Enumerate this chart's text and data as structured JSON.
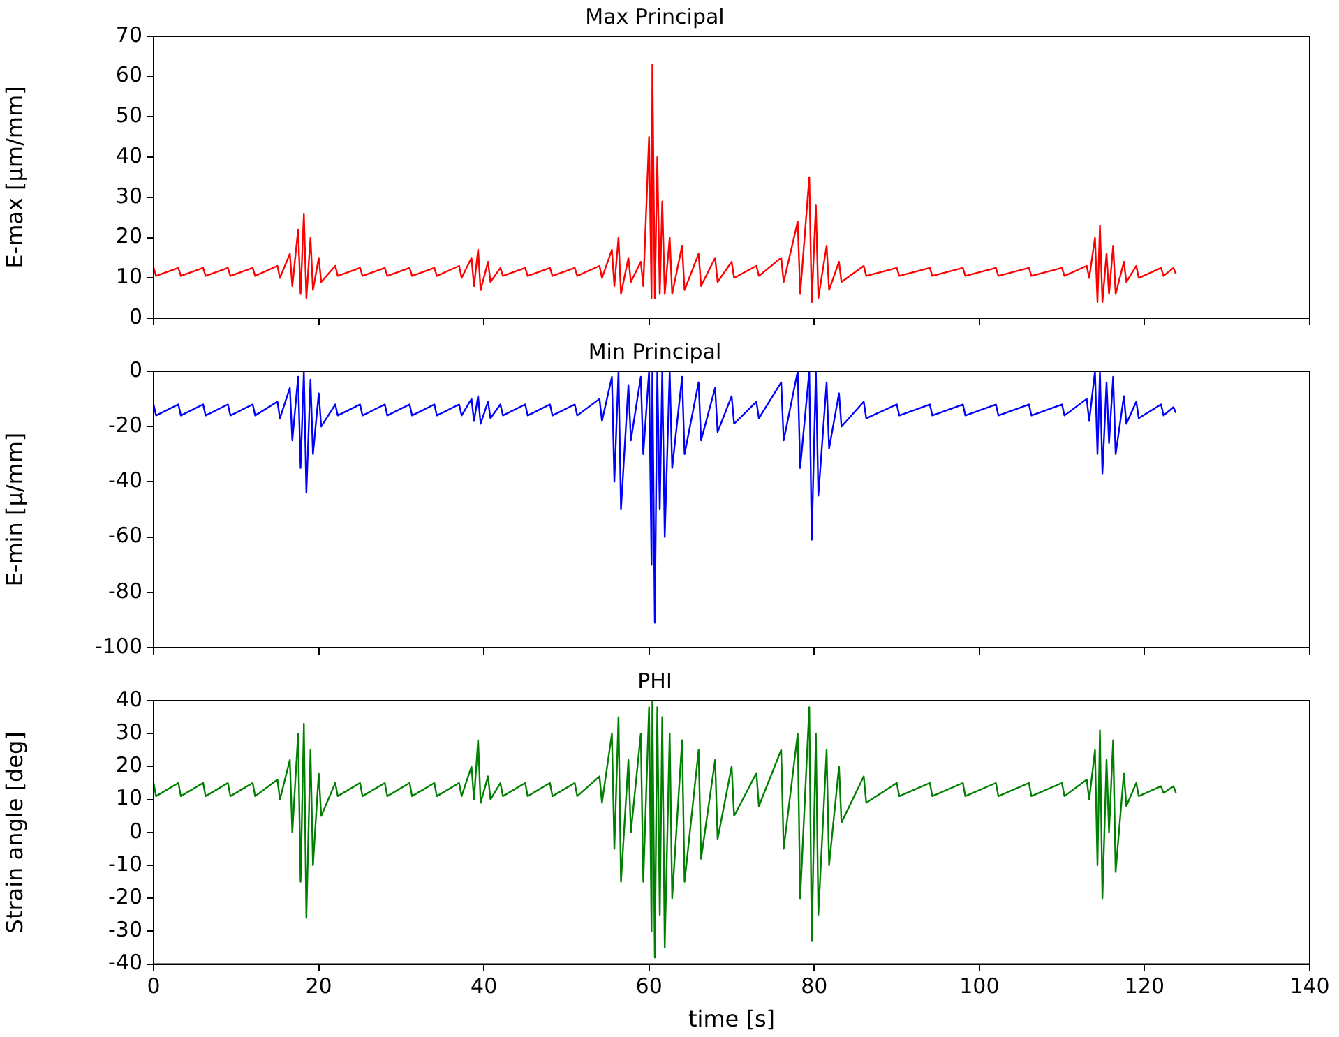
{
  "chart_data": [
    {
      "type": "line",
      "title": "Max Principal",
      "ylabel": "E-max [µm/mm]",
      "xlim": [
        0,
        140
      ],
      "xticks": [
        0,
        20,
        40,
        60,
        80,
        100,
        120,
        140
      ],
      "ylim": [
        0,
        70
      ],
      "yticks": [
        0,
        10,
        20,
        30,
        40,
        50,
        60,
        70
      ],
      "tick_labels": "y",
      "grid": false,
      "legend": false,
      "marker": "none",
      "line_style": "solid",
      "series": [
        {
          "color": "#ff0000",
          "x": [
            0,
            0.3,
            3,
            3.3,
            6,
            6.3,
            9,
            9.3,
            12,
            12.3,
            15,
            15.3,
            16.5,
            16.8,
            17.5,
            17.8,
            18.2,
            18.5,
            19,
            19.3,
            20,
            20.3,
            22,
            22.3,
            25,
            25.3,
            28,
            28.3,
            31,
            31.3,
            34,
            34.3,
            37,
            37.3,
            38.5,
            38.8,
            39.3,
            39.6,
            40.5,
            40.8,
            42,
            42.3,
            45,
            45.3,
            48,
            48.3,
            51,
            51.3,
            54,
            54.3,
            55.5,
            55.8,
            56.3,
            56.6,
            57.5,
            57.8,
            59,
            59.3,
            60,
            60.3,
            60.4,
            60.7,
            61,
            61.3,
            61.6,
            61.9,
            62.5,
            62.8,
            64,
            64.3,
            66,
            66.3,
            68,
            68.3,
            70,
            70.3,
            73,
            73.3,
            76,
            76.3,
            78,
            78.3,
            79.4,
            79.7,
            80.2,
            80.5,
            81.5,
            81.8,
            83,
            83.3,
            86,
            86.3,
            90,
            90.3,
            94,
            94.3,
            98,
            98.3,
            102,
            102.3,
            106,
            106.3,
            110,
            110.3,
            113,
            113.3,
            114,
            114.3,
            114.6,
            114.9,
            115.4,
            115.7,
            116.2,
            116.5,
            117.5,
            117.8,
            119,
            119.3,
            122,
            122.3,
            123.5,
            123.8
          ],
          "values": [
            12.5,
            10.5,
            12.5,
            10.5,
            12.5,
            10.5,
            12.5,
            10.5,
            12.5,
            10.5,
            13,
            10,
            16,
            8,
            22,
            6,
            26,
            5,
            20,
            7,
            15,
            9,
            13,
            10.5,
            12.5,
            10.5,
            12.5,
            10.5,
            12.5,
            10.5,
            12.5,
            10.5,
            13,
            10,
            15,
            8,
            17,
            7,
            14,
            9,
            12.5,
            10.5,
            12.5,
            10.5,
            12.5,
            10.5,
            12.5,
            10.5,
            13,
            10,
            17,
            8,
            20,
            6,
            15,
            9,
            14,
            8,
            45,
            5,
            63,
            5,
            40,
            6,
            29,
            6,
            20,
            6,
            18,
            7,
            16,
            8,
            15,
            9,
            14,
            10,
            13,
            10.5,
            15,
            9,
            24,
            6,
            35,
            4,
            28,
            5,
            18,
            7,
            14,
            9,
            13,
            10.5,
            12.5,
            10.5,
            12.5,
            10.5,
            12.5,
            10.5,
            12.5,
            10.5,
            12.5,
            10.5,
            12.5,
            10.5,
            13,
            10,
            20,
            4,
            23,
            4,
            16,
            6,
            18,
            6,
            14,
            9,
            13,
            10,
            12.5,
            10.5,
            12.5,
            11
          ]
        }
      ]
    },
    {
      "type": "line",
      "title": "Min Principal",
      "ylabel": "E-min [µ/mm]",
      "xlim": [
        0,
        140
      ],
      "xticks": [
        0,
        20,
        40,
        60,
        80,
        100,
        120,
        140
      ],
      "ylim": [
        -100,
        0
      ],
      "yticks": [
        -100,
        -80,
        -60,
        -40,
        -20,
        0
      ],
      "tick_labels": "y",
      "grid": false,
      "legend": false,
      "marker": "none",
      "line_style": "solid",
      "series": [
        {
          "color": "#0000ff",
          "x": [
            0,
            0.3,
            3,
            3.3,
            6,
            6.3,
            9,
            9.3,
            12,
            12.3,
            15,
            15.3,
            16.5,
            16.8,
            17.5,
            17.8,
            18.2,
            18.5,
            19,
            19.3,
            20,
            20.3,
            22,
            22.3,
            25,
            25.3,
            28,
            28.3,
            31,
            31.3,
            34,
            34.3,
            37,
            37.3,
            38.5,
            38.8,
            39.3,
            39.6,
            40.5,
            40.8,
            42,
            42.3,
            45,
            45.3,
            48,
            48.3,
            51,
            51.3,
            54,
            54.3,
            55.5,
            55.8,
            56.3,
            56.6,
            57.5,
            57.8,
            59,
            59.3,
            60,
            60.3,
            60.4,
            60.7,
            61,
            61.3,
            61.6,
            61.9,
            62.5,
            62.8,
            64,
            64.3,
            66,
            66.3,
            68,
            68.3,
            70,
            70.3,
            73,
            73.3,
            76,
            76.3,
            78,
            78.3,
            79.4,
            79.7,
            80.2,
            80.5,
            81.5,
            81.8,
            83,
            83.3,
            86,
            86.3,
            90,
            90.3,
            94,
            94.3,
            98,
            98.3,
            102,
            102.3,
            106,
            106.3,
            110,
            110.3,
            113,
            113.3,
            114,
            114.3,
            114.6,
            114.9,
            115.4,
            115.7,
            116.2,
            116.5,
            117.5,
            117.8,
            119,
            119.3,
            122,
            122.3,
            123.5,
            123.8
          ],
          "values": [
            -12,
            -16,
            -12,
            -16,
            -12,
            -16,
            -12,
            -16,
            -12,
            -16,
            -11,
            -17,
            -6,
            -25,
            -2,
            -35,
            0,
            -44,
            -3,
            -30,
            -8,
            -20,
            -12,
            -16,
            -12,
            -16,
            -12,
            -16,
            -12,
            -16,
            -12,
            -16,
            -12,
            -16,
            -10,
            -18,
            -9,
            -19,
            -11,
            -17,
            -12,
            -16,
            -12,
            -16,
            -12,
            -16,
            -12,
            -16,
            -10,
            -18,
            -2,
            -40,
            0,
            -50,
            -5,
            -25,
            -2,
            -30,
            0,
            -70,
            0,
            -91,
            0,
            -50,
            0,
            -60,
            0,
            -35,
            -2,
            -30,
            -4,
            -25,
            -6,
            -22,
            -9,
            -19,
            -11,
            -17,
            -4,
            -25,
            0,
            -35,
            0,
            -61,
            0,
            -45,
            -4,
            -28,
            -8,
            -20,
            -11,
            -17,
            -12,
            -16,
            -12,
            -16,
            -12,
            -16,
            -12,
            -16,
            -12,
            -16,
            -12,
            -16,
            -10,
            -18,
            0,
            -30,
            0,
            -37,
            -4,
            -26,
            -2,
            -30,
            -9,
            -19,
            -11,
            -17,
            -12,
            -16,
            -13,
            -15
          ]
        }
      ]
    },
    {
      "type": "line",
      "title": "PHI",
      "xlabel": "time [s]",
      "ylabel": "Strain angle [deg]",
      "xlim": [
        0,
        140
      ],
      "xticks": [
        0,
        20,
        40,
        60,
        80,
        100,
        120,
        140
      ],
      "ylim": [
        -40,
        40
      ],
      "yticks": [
        -40,
        -30,
        -20,
        -10,
        0,
        10,
        20,
        30,
        40
      ],
      "grid": false,
      "legend": false,
      "marker": "none",
      "line_style": "solid",
      "series": [
        {
          "color": "#008000",
          "x": [
            0,
            0.3,
            3,
            3.3,
            6,
            6.3,
            9,
            9.3,
            12,
            12.3,
            15,
            15.3,
            16.5,
            16.8,
            17.5,
            17.8,
            18.2,
            18.5,
            19,
            19.3,
            20,
            20.3,
            22,
            22.3,
            25,
            25.3,
            28,
            28.3,
            31,
            31.3,
            34,
            34.3,
            37,
            37.3,
            38.5,
            38.8,
            39.3,
            39.6,
            40.5,
            40.8,
            42,
            42.3,
            45,
            45.3,
            48,
            48.3,
            51,
            51.3,
            54,
            54.3,
            55.5,
            55.8,
            56.3,
            56.6,
            57.5,
            57.8,
            59,
            59.3,
            60,
            60.3,
            60.4,
            60.7,
            61,
            61.3,
            61.6,
            61.9,
            62.5,
            62.8,
            64,
            64.3,
            66,
            66.3,
            68,
            68.3,
            70,
            70.3,
            73,
            73.3,
            76,
            76.3,
            78,
            78.3,
            79.4,
            79.7,
            80.2,
            80.5,
            81.5,
            81.8,
            83,
            83.3,
            86,
            86.3,
            90,
            90.3,
            94,
            94.3,
            98,
            98.3,
            102,
            102.3,
            106,
            106.3,
            110,
            110.3,
            113,
            113.3,
            114,
            114.3,
            114.6,
            114.9,
            115.4,
            115.7,
            116.2,
            116.5,
            117.5,
            117.8,
            119,
            119.3,
            122,
            122.3,
            123.5,
            123.8
          ],
          "values": [
            15,
            11,
            15,
            11,
            15,
            11,
            15,
            11,
            15,
            11,
            16,
            10,
            22,
            0,
            30,
            -15,
            33,
            -26,
            25,
            -10,
            18,
            5,
            15,
            11,
            15,
            11,
            15,
            11,
            15,
            11,
            15,
            11,
            15,
            11,
            20,
            10,
            28,
            9,
            17,
            10,
            15,
            11,
            15,
            11,
            15,
            11,
            15,
            11,
            17,
            9,
            30,
            -5,
            35,
            -15,
            22,
            0,
            30,
            -15,
            38,
            -30,
            40,
            -38,
            38,
            -25,
            35,
            -35,
            30,
            -20,
            28,
            -15,
            25,
            -8,
            22,
            -2,
            20,
            5,
            18,
            8,
            25,
            -5,
            30,
            -20,
            38,
            -33,
            30,
            -25,
            25,
            -10,
            20,
            3,
            17,
            9,
            15,
            11,
            15,
            11,
            15,
            11,
            15,
            11,
            15,
            11,
            15,
            11,
            16,
            10,
            25,
            -10,
            31,
            -20,
            22,
            0,
            28,
            -12,
            18,
            8,
            15,
            11,
            14,
            12,
            14,
            12
          ]
        }
      ]
    }
  ]
}
